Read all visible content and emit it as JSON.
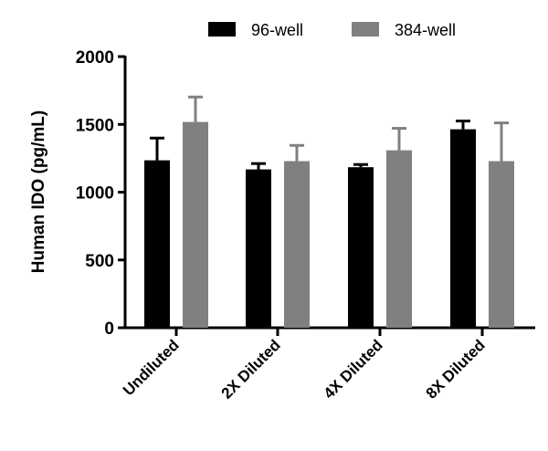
{
  "chart_data": {
    "type": "bar",
    "title": "",
    "xlabel": "",
    "ylabel": "Human IDO (pg/mL)",
    "ylim": [
      0,
      2000
    ],
    "yticks": [
      0,
      500,
      1000,
      1500,
      2000
    ],
    "categories": [
      "Undiluted",
      "2X Diluted",
      "4X Diluted",
      "8X Diluted"
    ],
    "legend_placement": "top",
    "series": [
      {
        "name": "96-well",
        "color": "#000000",
        "values": [
          1235,
          1168,
          1184,
          1464
        ],
        "error_upper": [
          1399,
          1211,
          1204,
          1525
        ]
      },
      {
        "name": "384-well",
        "color": "#808080",
        "values": [
          1518,
          1229,
          1309,
          1229
        ],
        "error_upper": [
          1702,
          1345,
          1471,
          1511
        ]
      }
    ]
  }
}
